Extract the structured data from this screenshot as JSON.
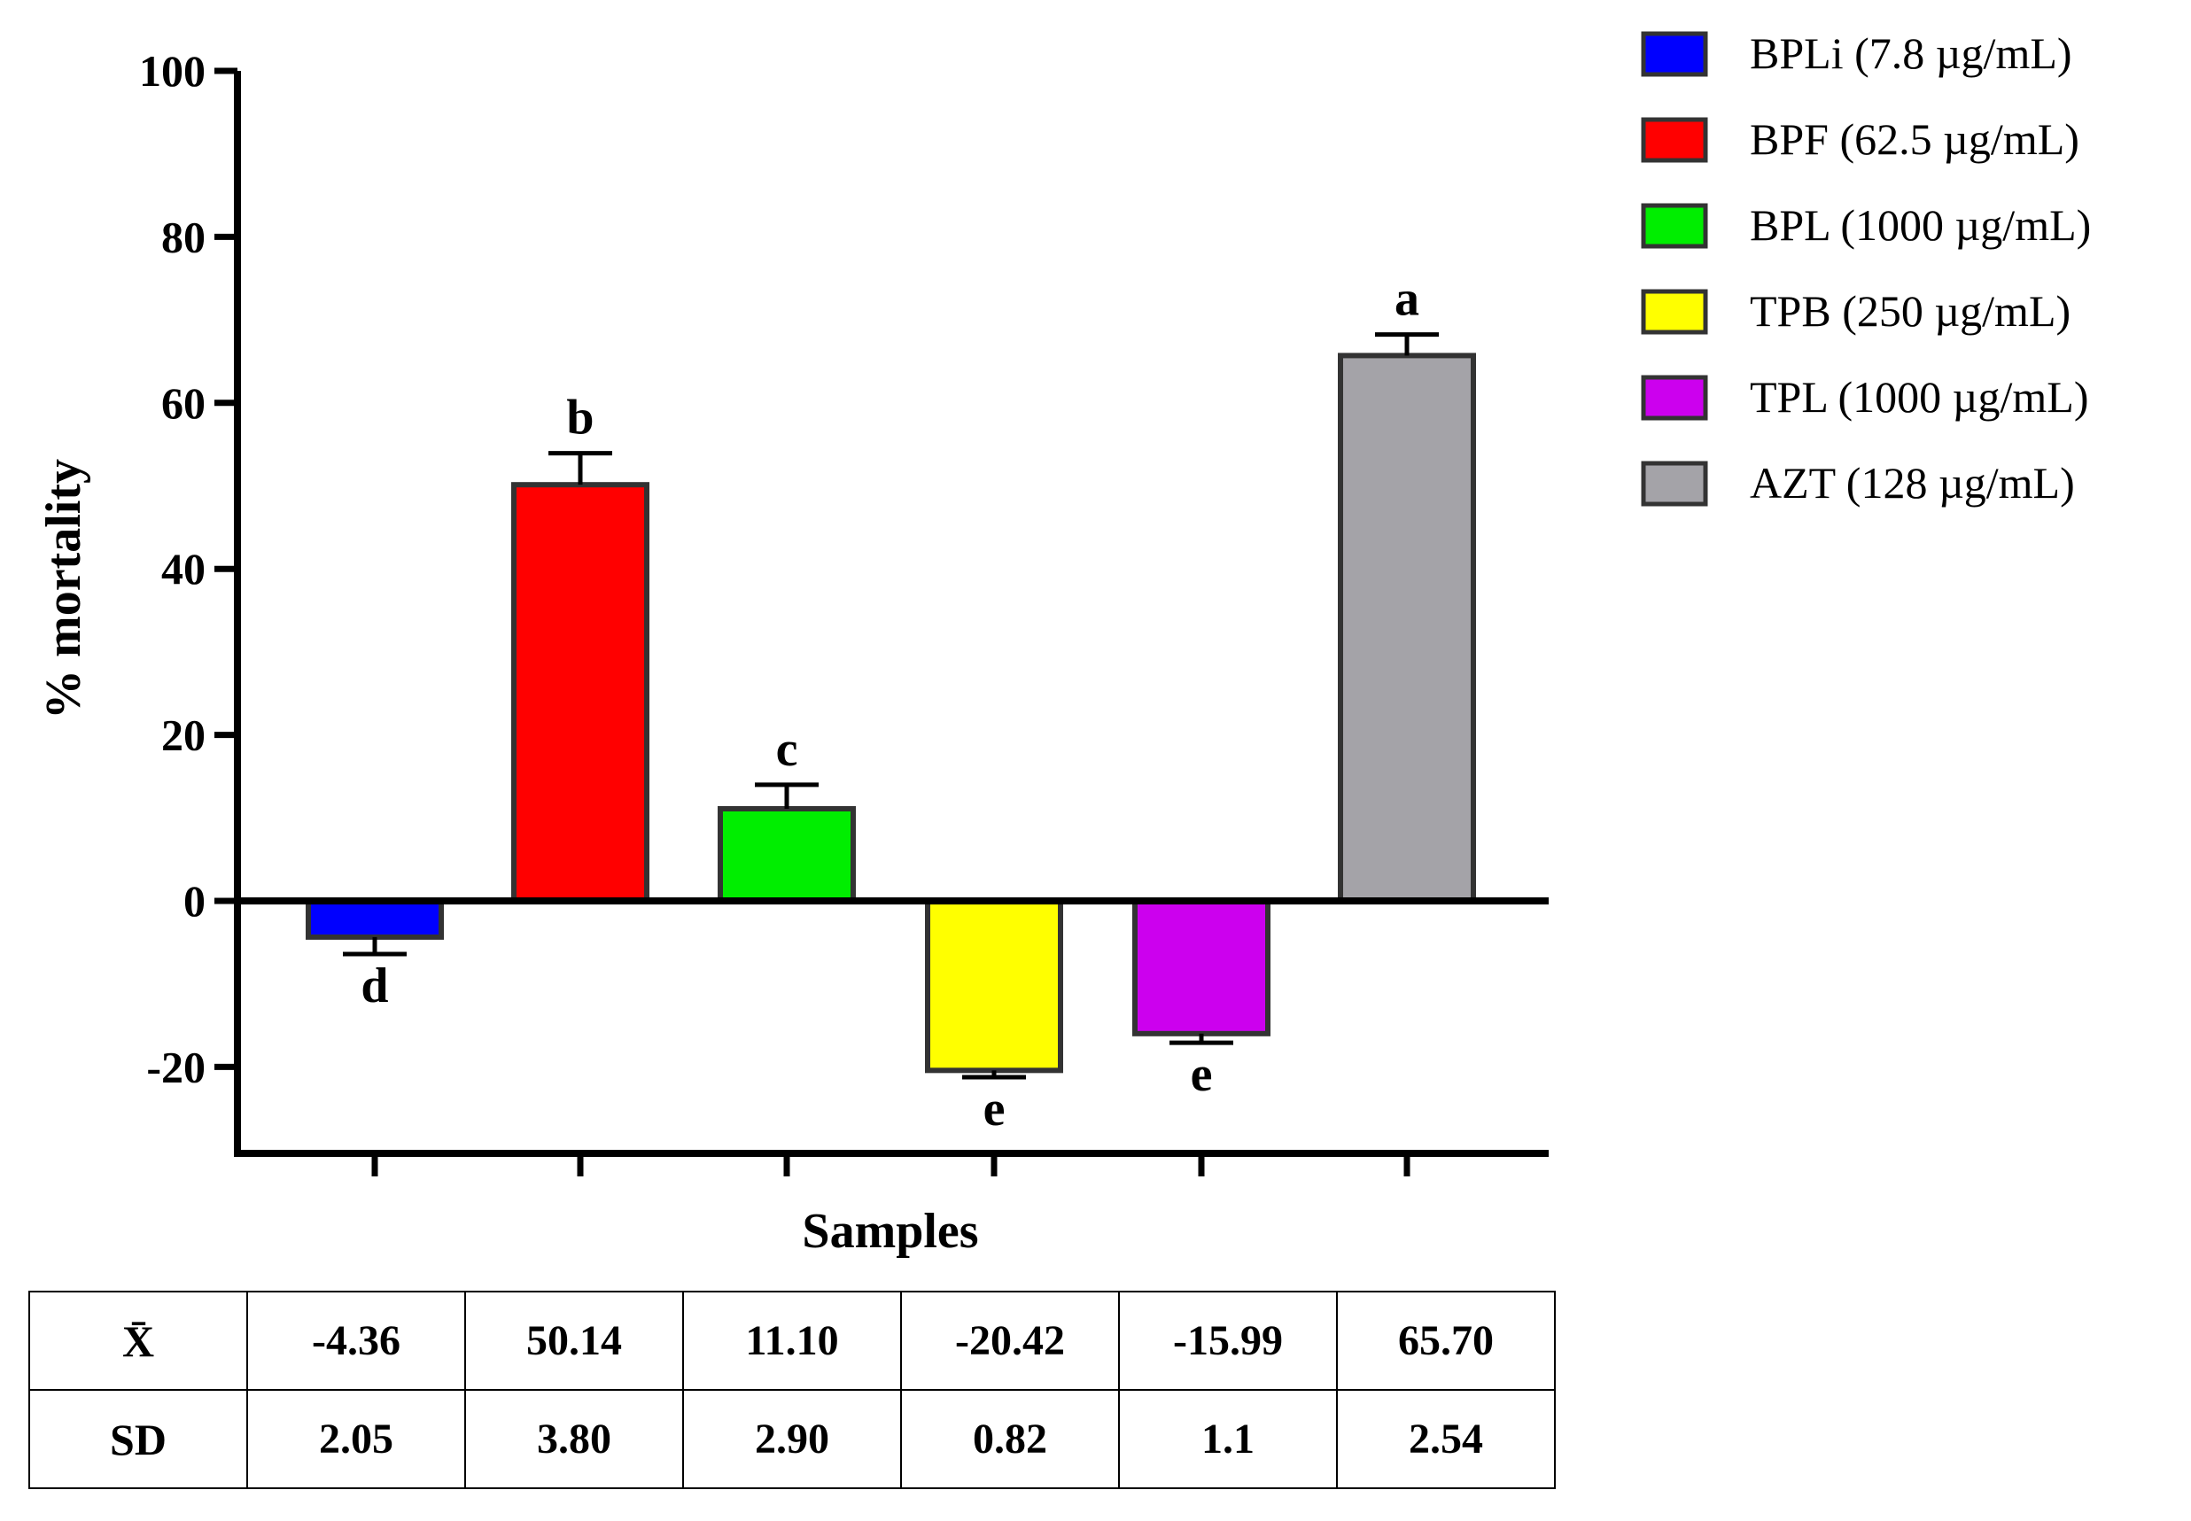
{
  "chart_data": {
    "type": "bar",
    "title": "",
    "xlabel": "Samples",
    "ylabel": "% mortality",
    "ylim": [
      -30,
      100
    ],
    "yticks": [
      -20,
      0,
      20,
      40,
      60,
      80,
      100
    ],
    "ytick_labels": [
      "-20",
      "0",
      "20",
      "40",
      "60",
      "80",
      "100"
    ],
    "grid": false,
    "legend_position": "top-right",
    "series": [
      {
        "name": "BPLi (7.8 µg/mL)",
        "value": -4.36,
        "sd": 2.05,
        "color": "#0000ff",
        "letter": "d"
      },
      {
        "name": "BPF (62.5 µg/mL)",
        "value": 50.14,
        "sd": 3.8,
        "color": "#ff0000",
        "letter": "b"
      },
      {
        "name": "BPL (1000 µg/mL)",
        "value": 11.1,
        "sd": 2.9,
        "color": "#00ee00",
        "letter": "c"
      },
      {
        "name": "TPB (250 µg/mL)",
        "value": -20.42,
        "sd": 0.82,
        "color": "#ffff00",
        "letter": "e"
      },
      {
        "name": "TPL (1000 µg/mL)",
        "value": -15.99,
        "sd": 1.1,
        "color": "#cc00ee",
        "letter": "e"
      },
      {
        "name": "AZT (128 µg/mL)",
        "value": 65.7,
        "sd": 2.54,
        "color": "#a4a3a8",
        "letter": "a"
      }
    ]
  },
  "table": {
    "row_mean_label": "X̄",
    "row_sd_label": "SD",
    "means": [
      "-4.36",
      "50.14",
      "11.10",
      "-20.42",
      "-15.99",
      "65.70"
    ],
    "sds": [
      "2.05",
      "3.80",
      "2.90",
      "0.82",
      "1.1",
      "2.54"
    ]
  }
}
